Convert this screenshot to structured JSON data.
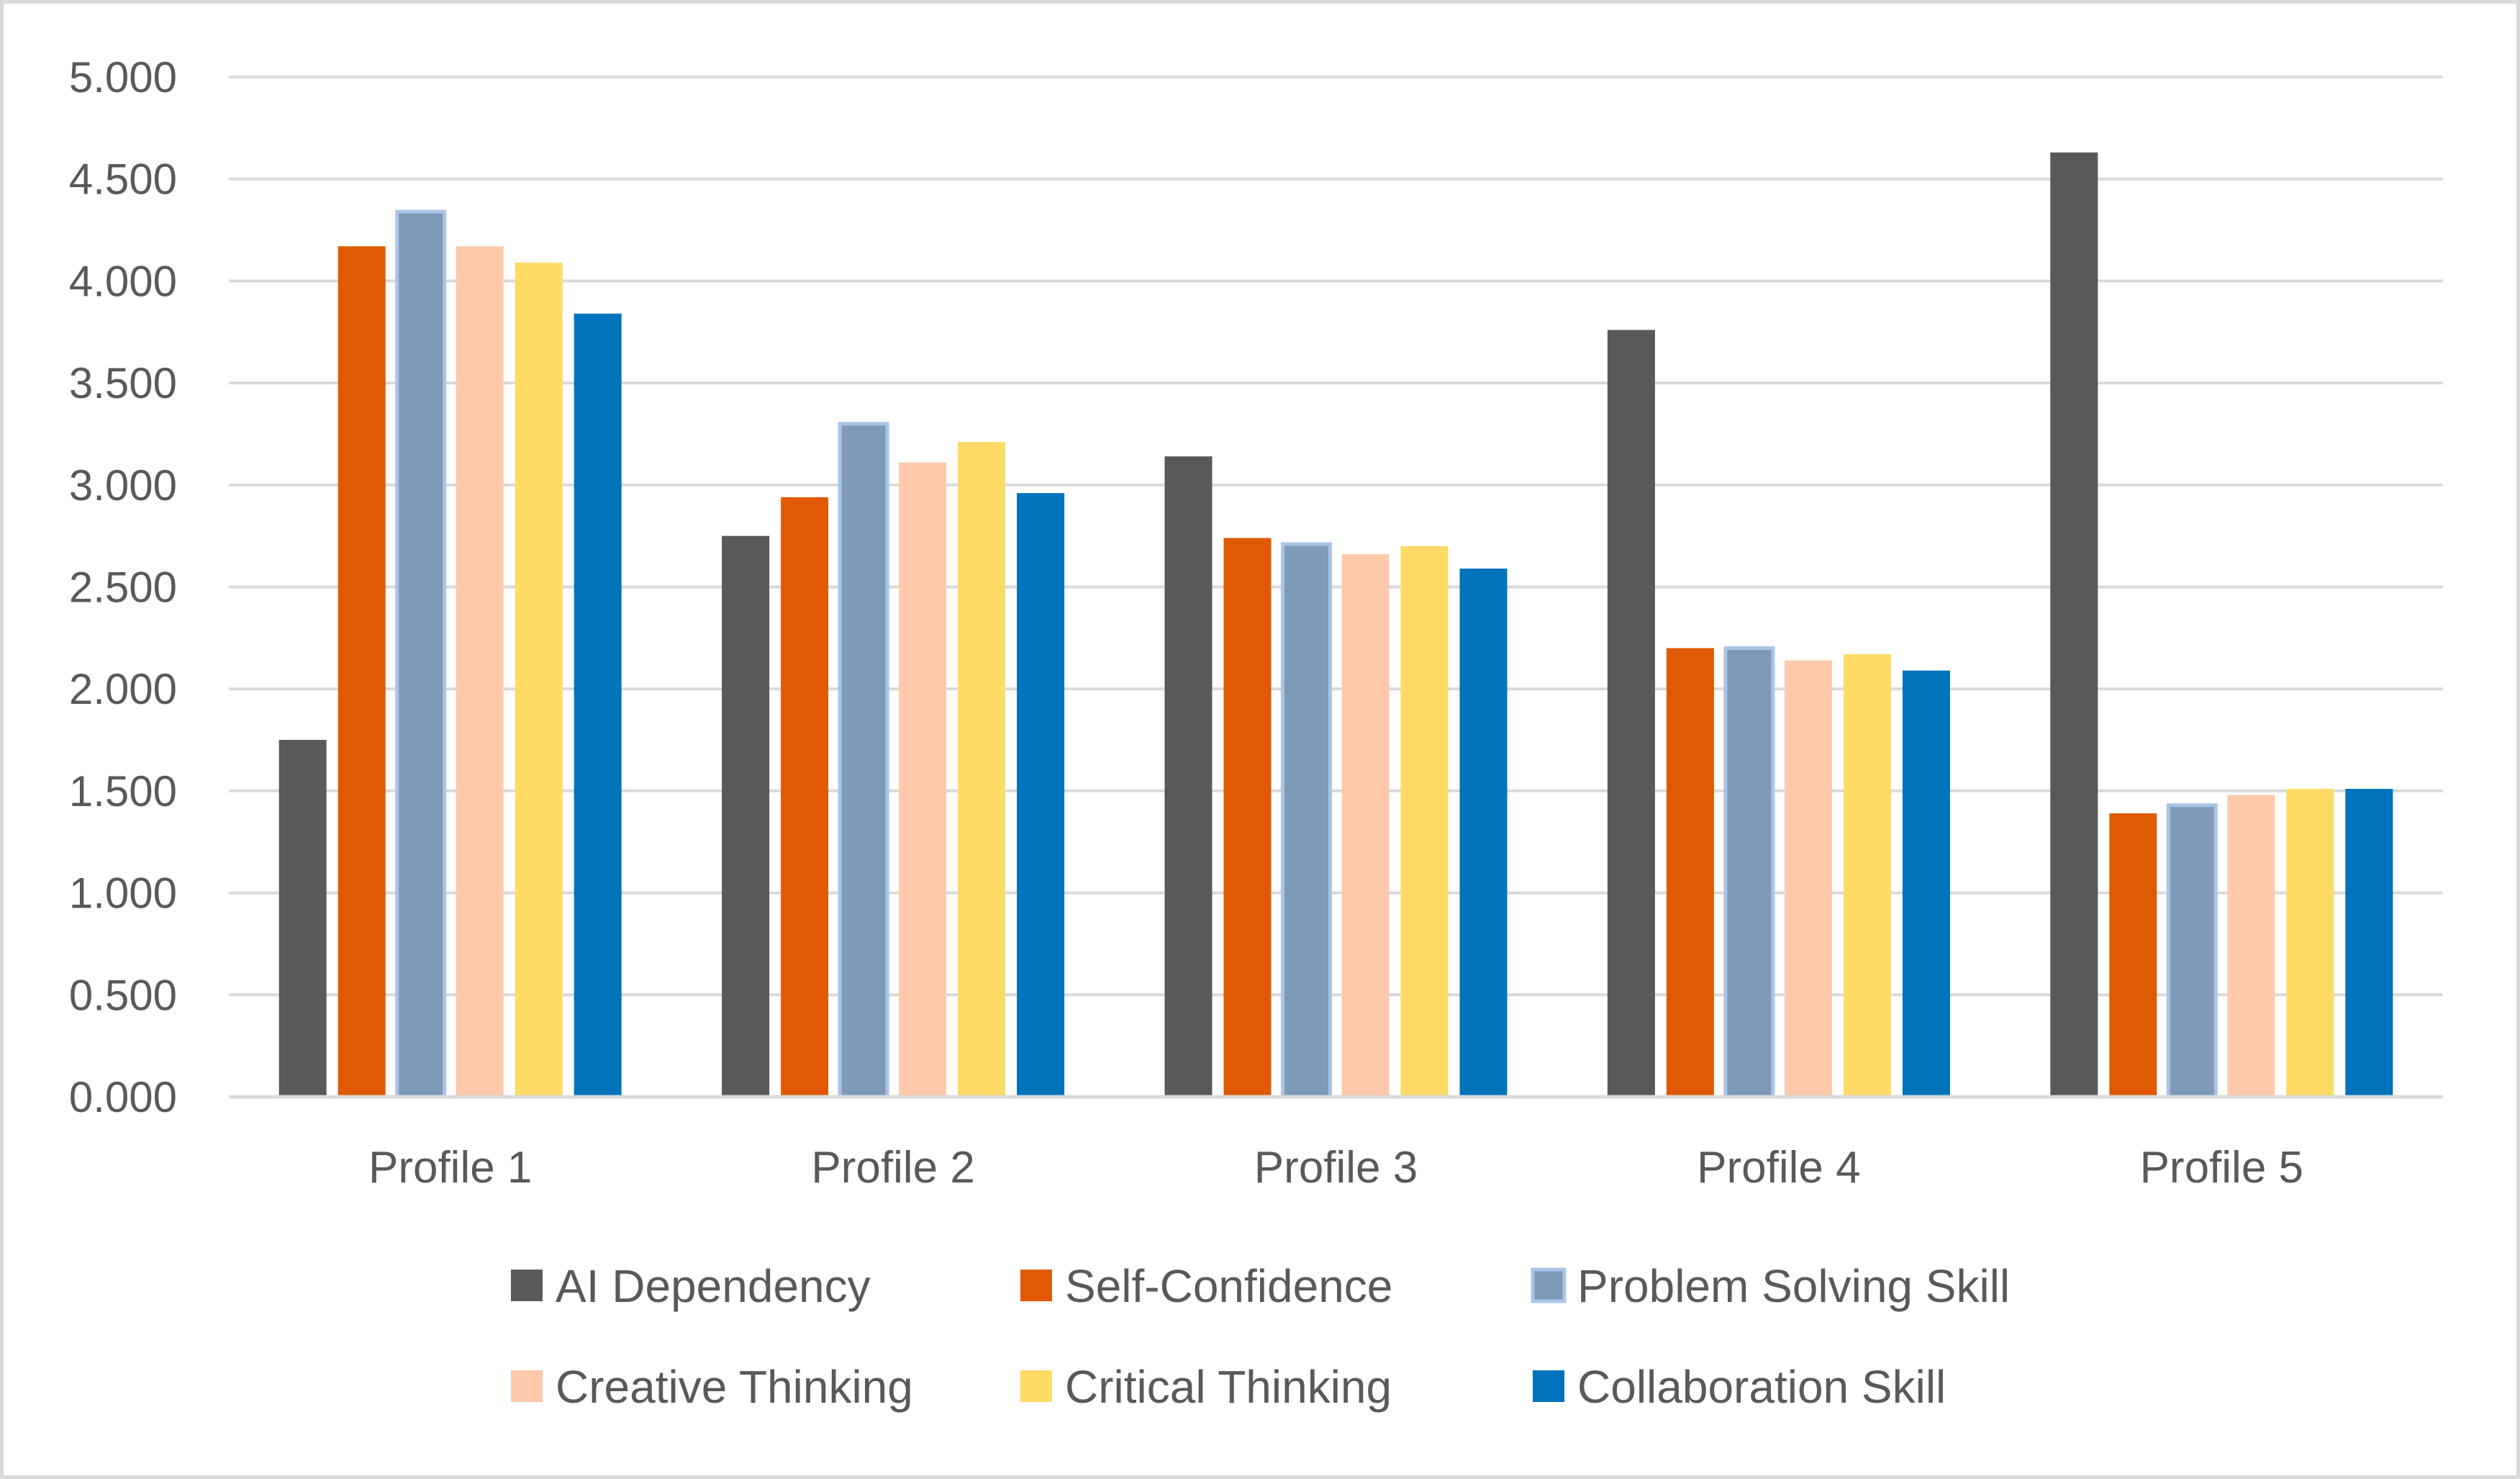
{
  "chart_data": {
    "type": "bar",
    "title": "",
    "xlabel": "",
    "ylabel": "",
    "ylim": [
      0,
      5
    ],
    "yticks": [
      "0.000",
      "0.500",
      "1.000",
      "1.500",
      "2.000",
      "2.500",
      "3.000",
      "3.500",
      "4.000",
      "4.500",
      "5.000"
    ],
    "grid": true,
    "legend_position": "bottom",
    "categories": [
      "Profile 1",
      "Profile 2",
      "Profile 3",
      "Profile 4",
      "Profile 5"
    ],
    "series": [
      {
        "name": "AI Dependency",
        "color": "#595959",
        "values": [
          1.75,
          2.75,
          3.14,
          3.76,
          4.63
        ]
      },
      {
        "name": "Self-Confidence",
        "color": "#e05a06",
        "values": [
          4.17,
          2.94,
          2.74,
          2.2,
          1.39
        ]
      },
      {
        "name": "Problem Solving Skill",
        "color": "#7f9ab6",
        "outline": "#a9c4e8",
        "values": [
          4.34,
          3.3,
          2.71,
          2.2,
          1.43
        ]
      },
      {
        "name": "Creative Thinking",
        "color": "#fdc9aa",
        "values": [
          4.17,
          3.11,
          2.66,
          2.14,
          1.48
        ]
      },
      {
        "name": "Critical Thinking",
        "color": "#ffda65",
        "values": [
          4.09,
          3.21,
          2.7,
          2.17,
          1.51
        ]
      },
      {
        "name": "Collaboration Skill",
        "color": "#0073bc",
        "values": [
          3.84,
          2.96,
          2.59,
          2.09,
          1.51
        ]
      }
    ]
  }
}
